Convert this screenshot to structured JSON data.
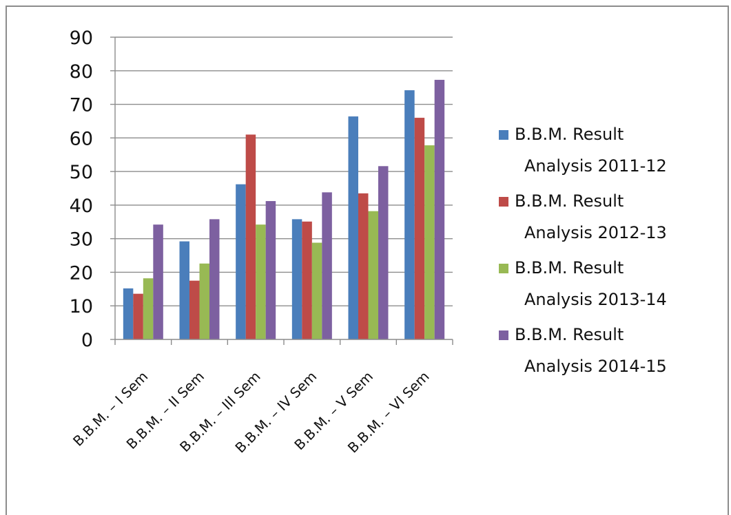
{
  "chart_data": {
    "type": "bar",
    "categories": [
      "B.B.M. – I Sem",
      "B.B.M. – II Sem",
      "B.B.M. – III Sem",
      "B.B.M. – IV Sem",
      "B.B.M. – V Sem",
      "B.B.M. – VI Sem"
    ],
    "series": [
      {
        "name": "B.B.M. Result Analysis 2011-12",
        "color": "#4a7ebb",
        "values": [
          15.2,
          29.2,
          46.2,
          35.8,
          66.4,
          74.2
        ]
      },
      {
        "name": "B.B.M. Result Analysis 2012-13",
        "color": "#be4b48",
        "values": [
          13.6,
          17.5,
          61.0,
          35.1,
          43.5,
          66.0
        ]
      },
      {
        "name": "B.B.M. Result Analysis 2013-14",
        "color": "#98b954",
        "values": [
          18.2,
          22.6,
          34.2,
          28.8,
          38.2,
          57.8
        ]
      },
      {
        "name": "B.B.M. Result Analysis 2014-15",
        "color": "#7d60a0",
        "values": [
          34.2,
          35.8,
          41.2,
          43.8,
          51.6,
          77.3
        ]
      }
    ],
    "yticks": [
      "0",
      "10",
      "20",
      "30",
      "40",
      "50",
      "60",
      "70",
      "80",
      "90"
    ],
    "ylim": [
      0,
      90
    ],
    "grid": true,
    "legend_position": "right",
    "legend_lines": [
      [
        "B.B.M. Result",
        "Analysis 2011-12"
      ],
      [
        "B.B.M. Result",
        "Analysis 2012-13"
      ],
      [
        "B.B.M. Result",
        "Analysis 2013-14"
      ],
      [
        "B.B.M. Result",
        "Analysis 2014-15"
      ]
    ]
  }
}
